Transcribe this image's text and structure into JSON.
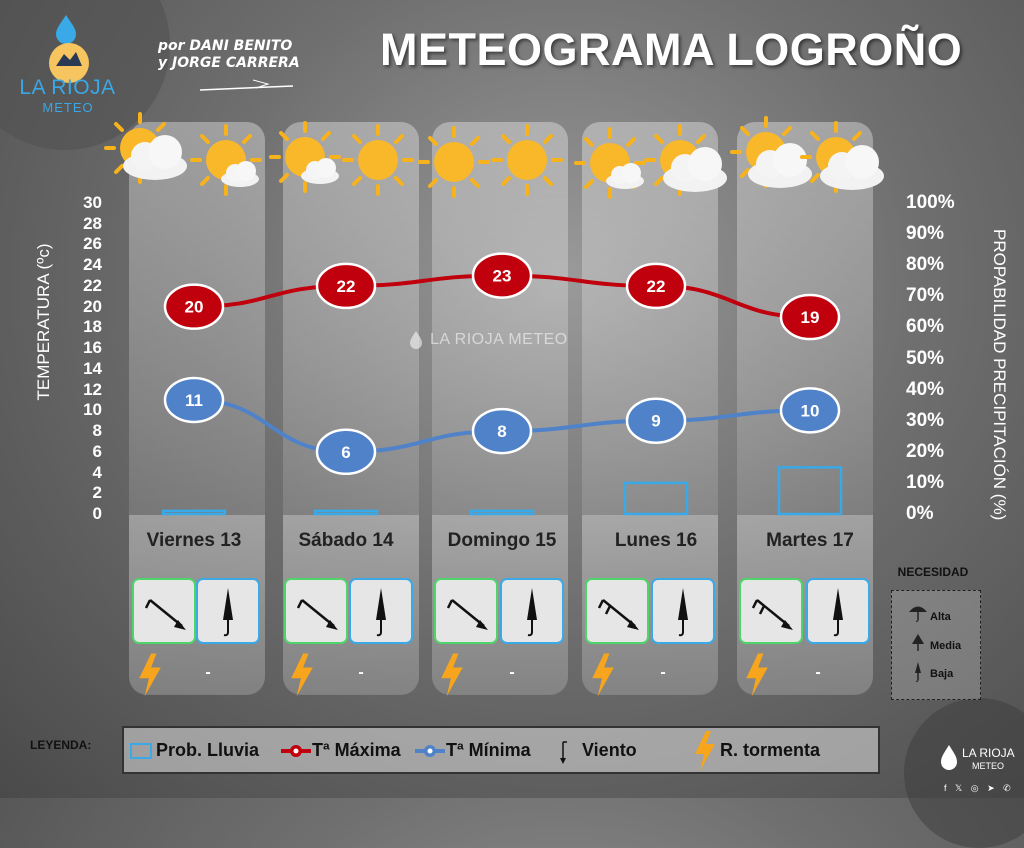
{
  "header": {
    "title": "METEOGRAMA LOGROÑO",
    "authors_line1": "por DANI BENITO",
    "authors_line2": "y JORGE CARRERA"
  },
  "logo": {
    "brand": "LA RIOJA",
    "sub": "METEO"
  },
  "watermark": "LA RIOJA METEO",
  "chart_data": {
    "type": "line",
    "categories": [
      "Viernes 13",
      "Sábado 14",
      "Domingo 15",
      "Lunes 16",
      "Martes 17"
    ],
    "series": [
      {
        "name": "Tª Máxima",
        "values": [
          20,
          22,
          23,
          22,
          19
        ],
        "color": "#c0000c"
      },
      {
        "name": "Tª Mínima",
        "values": [
          11,
          6,
          8,
          9,
          10
        ],
        "color": "#4f82c8"
      },
      {
        "name": "Prob. Lluvia",
        "type": "bar",
        "axis": "right",
        "values": [
          1,
          1,
          1,
          10,
          15
        ],
        "color": "#39a9e8"
      }
    ],
    "ylabel": "TEMPERATURA (ºc)",
    "ylim": [
      0,
      30
    ],
    "yticks": [
      "0",
      "2",
      "4",
      "6",
      "8",
      "10",
      "12",
      "14",
      "16",
      "18",
      "20",
      "22",
      "24",
      "26",
      "28",
      "30"
    ],
    "y2label": "PROPABILIDAD PRECIPITACIÓN (%)",
    "y2lim": [
      0,
      100
    ],
    "y2ticks": [
      "0%",
      "10%",
      "20%",
      "30%",
      "40%",
      "50%",
      "60%",
      "70%",
      "80%",
      "90%",
      "100%"
    ],
    "grid": false
  },
  "days": [
    {
      "label": "Viernes 13",
      "sky": [
        "cloudy",
        "sunny-cloud"
      ],
      "wind": "wind-arrow-icon",
      "umbrella": "closed-umbrella-icon",
      "storm_risk": "-"
    },
    {
      "label": "Sábado 14",
      "sky": [
        "sunny-cloud",
        "sunny"
      ],
      "wind": "wind-arrow-icon",
      "umbrella": "closed-umbrella-icon",
      "storm_risk": "-"
    },
    {
      "label": "Domingo 15",
      "sky": [
        "sunny",
        "sunny"
      ],
      "wind": "wind-arrow-icon",
      "umbrella": "closed-umbrella-icon",
      "storm_risk": "-"
    },
    {
      "label": "Lunes 16",
      "sky": [
        "sunny-cloud",
        "sunny-cloud"
      ],
      "wind": "wind-arrow-icon",
      "umbrella": "closed-umbrella-icon",
      "storm_risk": "-"
    },
    {
      "label": "Martes 17",
      "sky": [
        "sunny-cloud",
        "sunny-cloud"
      ],
      "wind": "wind-arrow-icon",
      "umbrella": "closed-umbrella-icon",
      "storm_risk": "-"
    }
  ],
  "necesidad": {
    "title": "NECESIDAD",
    "levels": [
      {
        "label": "Alta",
        "icon": "open-umbrella-icon"
      },
      {
        "label": "Media",
        "icon": "half-umbrella-icon"
      },
      {
        "label": "Baja",
        "icon": "closed-umbrella-icon"
      }
    ]
  },
  "legend": {
    "title": "LEYENDA:",
    "items": {
      "rain": "Prob. Lluvia",
      "tmax": "Tª Máxima",
      "tmin": "Tª Mínima",
      "wind": "Viento",
      "storm": "R. tormenta"
    }
  },
  "footer": {
    "brand": "LA RIOJA",
    "sub": "METEO",
    "social": "f 𝕏 ◎ ➤ ✆"
  },
  "colors": {
    "tmax": "#c0000c",
    "tmin": "#4f82c8",
    "rain": "#39a9e8",
    "storm": "#f7a51c",
    "wind_box": "#4fd46a",
    "umbrella_box": "#39a9e8"
  }
}
